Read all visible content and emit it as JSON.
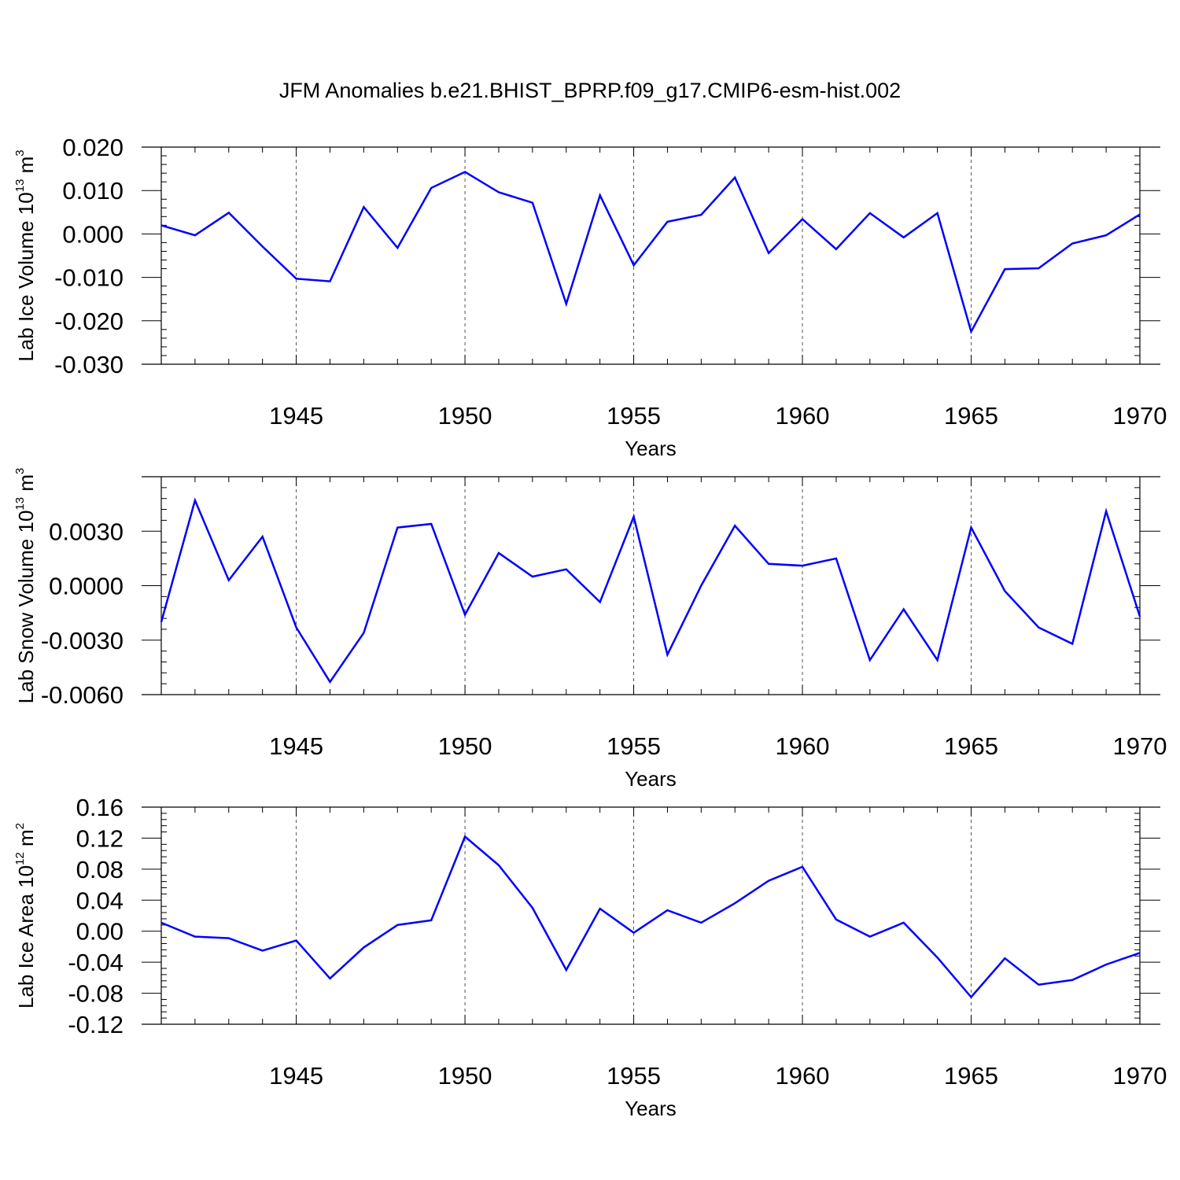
{
  "title": "JFM Anomalies b.e21.BHIST_BPRP.f09_g17.CMIP6-esm-hist.002",
  "colors": {
    "line": "#0000ff",
    "grid": "#555555",
    "frame": "#000000"
  },
  "chart_data": [
    {
      "type": "line",
      "ylabel": "Lab Ice Volume 10",
      "ylabel_exp": "13",
      "ylabel_unit": "m",
      "ylabel_unit_exp": "3",
      "xlabel": "Years",
      "xlim": [
        1941,
        1970
      ],
      "ylim": [
        -0.03,
        0.02
      ],
      "x_ticks": [
        1945,
        1950,
        1955,
        1960,
        1965,
        1970
      ],
      "x_tick_labels": [
        "1945",
        "1950",
        "1955",
        "1960",
        "1965",
        "1970"
      ],
      "y_ticks": [
        -0.03,
        -0.02,
        -0.01,
        0.0,
        0.01,
        0.02
      ],
      "y_tick_labels": [
        "-0.030",
        "-0.020",
        "-0.010",
        "0.000",
        "0.010",
        "0.020"
      ],
      "grid": "vertical dashed at x ticks",
      "x": [
        1941,
        1942,
        1943,
        1944,
        1945,
        1946,
        1947,
        1948,
        1949,
        1950,
        1951,
        1952,
        1953,
        1954,
        1955,
        1956,
        1957,
        1958,
        1959,
        1960,
        1961,
        1962,
        1963,
        1964,
        1965,
        1966,
        1967,
        1968,
        1969,
        1970
      ],
      "values": [
        0.002,
        -0.0003,
        0.0049,
        -0.0029,
        -0.0103,
        -0.0109,
        0.0062,
        -0.0032,
        0.0106,
        0.0143,
        0.0096,
        0.0072,
        -0.0161,
        0.0089,
        -0.0072,
        0.0028,
        0.0044,
        0.013,
        -0.0044,
        0.0034,
        -0.0035,
        0.0048,
        -0.0008,
        0.0048,
        -0.0225,
        -0.0081,
        -0.0079,
        -0.0022,
        -0.0003,
        0.0045
      ]
    },
    {
      "type": "line",
      "ylabel": "Lab Snow Volume 10",
      "ylabel_exp": "13",
      "ylabel_unit": "m",
      "ylabel_unit_exp": "3",
      "xlabel": "Years",
      "xlim": [
        1941,
        1970
      ],
      "ylim": [
        -0.006,
        0.006
      ],
      "x_ticks": [
        1945,
        1950,
        1955,
        1960,
        1965,
        1970
      ],
      "x_tick_labels": [
        "1945",
        "1950",
        "1955",
        "1960",
        "1965",
        "1970"
      ],
      "y_ticks": [
        -0.006,
        -0.003,
        0.0,
        0.003
      ],
      "y_tick_labels": [
        "-0.0060",
        "-0.0030",
        "0.0000",
        "0.0030"
      ],
      "grid": "vertical dashed at x ticks",
      "x": [
        1941,
        1942,
        1943,
        1944,
        1945,
        1946,
        1947,
        1948,
        1949,
        1950,
        1951,
        1952,
        1953,
        1954,
        1955,
        1956,
        1957,
        1958,
        1959,
        1960,
        1961,
        1962,
        1963,
        1964,
        1965,
        1966,
        1967,
        1968,
        1969,
        1970
      ],
      "values": [
        -0.002,
        0.0047,
        0.0003,
        0.0027,
        -0.0023,
        -0.0053,
        -0.0026,
        0.0032,
        0.0034,
        -0.0016,
        0.0018,
        0.0005,
        0.0009,
        -0.0009,
        0.0038,
        -0.0038,
        0.0,
        0.0033,
        0.0012,
        0.0011,
        0.0015,
        -0.0041,
        -0.0013,
        -0.0041,
        0.0032,
        -0.0003,
        -0.0023,
        -0.0032,
        0.0041,
        -0.0017
      ]
    },
    {
      "type": "line",
      "ylabel": "Lab Ice Area 10",
      "ylabel_exp": "12",
      "ylabel_unit": "m",
      "ylabel_unit_exp": "2",
      "xlabel": "Years",
      "xlim": [
        1941,
        1970
      ],
      "ylim": [
        -0.12,
        0.16
      ],
      "x_ticks": [
        1945,
        1950,
        1955,
        1960,
        1965,
        1970
      ],
      "x_tick_labels": [
        "1945",
        "1950",
        "1955",
        "1960",
        "1965",
        "1970"
      ],
      "y_ticks": [
        -0.12,
        -0.08,
        -0.04,
        0.0,
        0.04,
        0.08,
        0.12,
        0.16
      ],
      "y_tick_labels": [
        "-0.12",
        "-0.08",
        "-0.04",
        "0.00",
        "0.04",
        "0.08",
        "0.12",
        "0.16"
      ],
      "grid": "vertical dashed at x ticks",
      "x": [
        1941,
        1942,
        1943,
        1944,
        1945,
        1946,
        1947,
        1948,
        1949,
        1950,
        1951,
        1952,
        1953,
        1954,
        1955,
        1956,
        1957,
        1958,
        1959,
        1960,
        1961,
        1962,
        1963,
        1964,
        1965,
        1966,
        1967,
        1968,
        1969,
        1970
      ],
      "values": [
        0.011,
        -0.007,
        -0.009,
        -0.025,
        -0.012,
        -0.061,
        -0.021,
        0.008,
        0.014,
        0.122,
        0.085,
        0.03,
        -0.05,
        0.029,
        -0.002,
        0.027,
        0.011,
        0.036,
        0.065,
        0.083,
        0.015,
        -0.007,
        0.011,
        -0.034,
        -0.085,
        -0.035,
        -0.069,
        -0.063,
        -0.043,
        -0.028
      ]
    }
  ]
}
